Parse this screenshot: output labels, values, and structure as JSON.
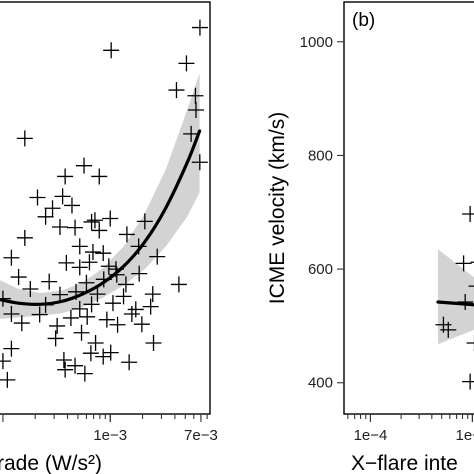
{
  "chart_data": [
    {
      "type": "scatter",
      "panel": "",
      "xlabel": "rade (W/s²)",
      "ylabel": "",
      "x_scale": "log",
      "xlim": [
        9e-05,
        0.0085
      ],
      "ylim": [
        345,
        1070
      ],
      "x_ticks": [
        {
          "value": 0.001,
          "label": "1e−3"
        },
        {
          "value": 0.007,
          "label": "7e−3"
        }
      ],
      "grid": false,
      "marker": "plus",
      "points": [
        {
          "x": 0.00685,
          "y": 1025
        },
        {
          "x": 0.00102,
          "y": 985
        },
        {
          "x": 0.00513,
          "y": 962
        },
        {
          "x": 0.00414,
          "y": 915
        },
        {
          "x": 0.00622,
          "y": 905
        },
        {
          "x": 0.00629,
          "y": 880
        },
        {
          "x": 0.00016,
          "y": 830
        },
        {
          "x": 0.00567,
          "y": 838
        },
        {
          "x": 0.00683,
          "y": 788
        },
        {
          "x": 0.00057,
          "y": 782
        },
        {
          "x": 0.00038,
          "y": 763
        },
        {
          "x": 0.00079,
          "y": 763
        },
        {
          "x": 0.00036,
          "y": 728
        },
        {
          "x": 0.00021,
          "y": 726
        },
        {
          "x": 0.00029,
          "y": 707
        },
        {
          "x": 0.00044,
          "y": 712
        },
        {
          "x": 0.00025,
          "y": 692
        },
        {
          "x": 0.00072,
          "y": 686
        },
        {
          "x": 0.001,
          "y": 689
        },
        {
          "x": 0.00034,
          "y": 674
        },
        {
          "x": 0.00047,
          "y": 673
        },
        {
          "x": 0.00067,
          "y": 683
        },
        {
          "x": 0.00079,
          "y": 668
        },
        {
          "x": 0.00143,
          "y": 661
        },
        {
          "x": 0.0021,
          "y": 684
        },
        {
          "x": 0.00016,
          "y": 655
        },
        {
          "x": 0.00069,
          "y": 630
        },
        {
          "x": 0.00052,
          "y": 640
        },
        {
          "x": 0.00086,
          "y": 628
        },
        {
          "x": 0.00184,
          "y": 640
        },
        {
          "x": 0.00012,
          "y": 620
        },
        {
          "x": 0.00039,
          "y": 611
        },
        {
          "x": 0.00052,
          "y": 603
        },
        {
          "x": 0.00064,
          "y": 612
        },
        {
          "x": 0.00097,
          "y": 605
        },
        {
          "x": 0.00113,
          "y": 600
        },
        {
          "x": 0.00274,
          "y": 622
        },
        {
          "x": 0.00014,
          "y": 586
        },
        {
          "x": 0.00027,
          "y": 578
        },
        {
          "x": 0.0006,
          "y": 576
        },
        {
          "x": 0.00087,
          "y": 582
        },
        {
          "x": 0.00115,
          "y": 590
        },
        {
          "x": 0.0014,
          "y": 573
        },
        {
          "x": 0.00186,
          "y": 592
        },
        {
          "x": 0.00018,
          "y": 565
        },
        {
          "x": 0.00034,
          "y": 555
        },
        {
          "x": 0.00048,
          "y": 560
        },
        {
          "x": 0.00076,
          "y": 556
        },
        {
          "x": 0.00133,
          "y": 552
        },
        {
          "x": 0.00249,
          "y": 556
        },
        {
          "x": 0.00436,
          "y": 573
        },
        {
          "x": 0.0001,
          "y": 548
        },
        {
          "x": 0.00025,
          "y": 537
        },
        {
          "x": 0.00052,
          "y": 530
        },
        {
          "x": 0.00067,
          "y": 538
        },
        {
          "x": 0.00106,
          "y": 540
        },
        {
          "x": 0.00173,
          "y": 529
        },
        {
          "x": 0.00238,
          "y": 534
        },
        {
          "x": 0.00012,
          "y": 521
        },
        {
          "x": 0.00022,
          "y": 520
        },
        {
          "x": 0.00043,
          "y": 514
        },
        {
          "x": 0.00061,
          "y": 516
        },
        {
          "x": 0.00093,
          "y": 511
        },
        {
          "x": 0.00159,
          "y": 521
        },
        {
          "x": 0.00015,
          "y": 505
        },
        {
          "x": 0.00032,
          "y": 500
        },
        {
          "x": 0.00054,
          "y": 488
        },
        {
          "x": 0.00117,
          "y": 502
        },
        {
          "x": 0.00197,
          "y": 503
        },
        {
          "x": 0.00031,
          "y": 478
        },
        {
          "x": 0.00073,
          "y": 470
        },
        {
          "x": 0.00012,
          "y": 460
        },
        {
          "x": 0.00066,
          "y": 452
        },
        {
          "x": 0.00101,
          "y": 453
        },
        {
          "x": 0.00253,
          "y": 470
        },
        {
          "x": 0.0001,
          "y": 438
        },
        {
          "x": 0.00037,
          "y": 440
        },
        {
          "x": 0.00047,
          "y": 430
        },
        {
          "x": 0.00038,
          "y": 423
        },
        {
          "x": 0.00011,
          "y": 405
        },
        {
          "x": 0.00086,
          "y": 446
        },
        {
          "x": 0.0015,
          "y": 436
        },
        {
          "x": 0.00058,
          "y": 416
        }
      ],
      "fit_curve": {
        "x": [
          9e-05,
          0.00014,
          0.00022,
          0.00035,
          0.00055,
          0.00086,
          0.00135,
          0.0021,
          0.0033,
          0.0052,
          0.0068
        ],
        "y": [
          547,
          540,
          538,
          543,
          556,
          576,
          606,
          648,
          708,
          787,
          843
        ],
        "ci_low": [
          512,
          515,
          518,
          522,
          533,
          550,
          572,
          600,
          640,
          692,
          735
        ],
        "ci_high": [
          582,
          565,
          558,
          562,
          576,
          602,
          641,
          698,
          776,
          880,
          945
        ]
      }
    },
    {
      "type": "scatter",
      "panel": "(b)",
      "xlabel": "X−flare inte",
      "ylabel": "ICME velocity (km/s)",
      "x_scale": "log",
      "xlim": [
        5.5e-05,
        0.0013
      ],
      "ylim": [
        345,
        1070
      ],
      "x_ticks": [
        {
          "value": 0.0001,
          "label": "1e−4"
        },
        {
          "value": 0.001,
          "label": "1e−3"
        }
      ],
      "y_ticks": [
        {
          "value": 400,
          "label": "400"
        },
        {
          "value": 600,
          "label": "600"
        },
        {
          "value": 800,
          "label": "800"
        },
        {
          "value": 1000,
          "label": "1000"
        }
      ],
      "grid": false,
      "marker": "plus",
      "points": [
        {
          "x": 0.00095,
          "y": 697
        },
        {
          "x": 0.00082,
          "y": 610
        },
        {
          "x": 0.00115,
          "y": 612
        },
        {
          "x": 0.0011,
          "y": 570
        },
        {
          "x": 0.00085,
          "y": 542
        },
        {
          "x": 0.00052,
          "y": 502
        },
        {
          "x": 0.00058,
          "y": 493
        },
        {
          "x": 0.00105,
          "y": 470
        },
        {
          "x": 0.00095,
          "y": 402
        }
      ],
      "fit_curve": {
        "x": [
          0.00046,
          0.0013
        ],
        "y": [
          542,
          536
        ],
        "ci_low": [
          468,
          500
        ],
        "ci_high": [
          635,
          572
        ]
      }
    }
  ]
}
